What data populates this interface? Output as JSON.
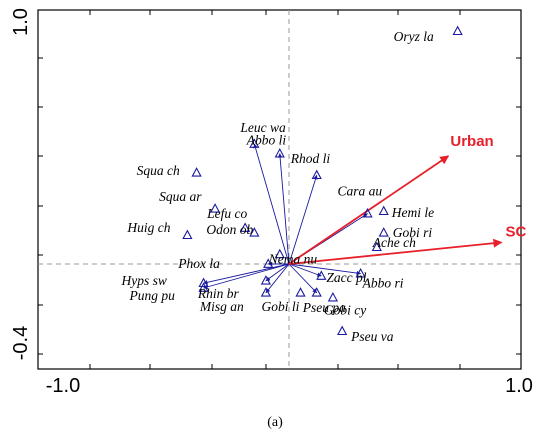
{
  "caption": "(a)",
  "chart_data": {
    "type": "biplot",
    "xlim": [
      -1.0,
      1.0
    ],
    "ylim": [
      -0.4,
      1.0
    ],
    "x_tick_labels": [
      "-1.0",
      "1.0"
    ],
    "y_tick_labels": [
      "1.0",
      "-0.4"
    ],
    "grid": false,
    "reference_lines": "dashed lines at x=0 and y=0",
    "colors": {
      "species": "#1a1a9e",
      "environment": "#e8202a",
      "axes": "#000000",
      "reference": "#999999"
    },
    "environmental_vectors": [
      {
        "label": "Urban",
        "x": 0.69,
        "y": 0.45
      },
      {
        "label": "SC",
        "x": 0.92,
        "y": 0.09
      }
    ],
    "species": [
      {
        "label": "Oryz la",
        "x": 0.73,
        "y": 0.97,
        "arrow": false
      },
      {
        "label": "Leuc wa",
        "x": -0.15,
        "y": 0.5,
        "arrow": true
      },
      {
        "label": "Abbo li",
        "x": -0.04,
        "y": 0.46,
        "arrow": true
      },
      {
        "label": "Rhod li",
        "x": 0.12,
        "y": 0.37,
        "arrow": true
      },
      {
        "label": "Squa ch",
        "x": -0.4,
        "y": 0.38,
        "arrow": false
      },
      {
        "label": "Squa ar",
        "x": -0.32,
        "y": 0.23,
        "arrow": false
      },
      {
        "label": "Cara au",
        "x": 0.34,
        "y": 0.21,
        "arrow": true
      },
      {
        "label": "Hemi le",
        "x": 0.41,
        "y": 0.22,
        "arrow": false
      },
      {
        "label": "Lefu co",
        "x": -0.19,
        "y": 0.15,
        "arrow": false
      },
      {
        "label": "Huig ch",
        "x": -0.44,
        "y": 0.12,
        "arrow": false
      },
      {
        "label": "Gobi ri",
        "x": 0.41,
        "y": 0.13,
        "arrow": false
      },
      {
        "label": "Odon ob",
        "x": -0.15,
        "y": 0.13,
        "arrow": false
      },
      {
        "label": "Nema nu",
        "x": -0.04,
        "y": 0.04,
        "arrow": false
      },
      {
        "label": "Ache ch",
        "x": 0.38,
        "y": 0.07,
        "arrow": false
      },
      {
        "label": "Phox la",
        "x": -0.09,
        "y": 0.0,
        "arrow": true
      },
      {
        "label": "Abbo ri",
        "x": 0.31,
        "y": -0.04,
        "arrow": true
      },
      {
        "label": "Hyps sw",
        "x": -0.37,
        "y": -0.08,
        "arrow": true
      },
      {
        "label": "Pung pu",
        "x": -0.37,
        "y": -0.1,
        "arrow": true
      },
      {
        "label": "Zacc pl",
        "x": 0.14,
        "y": -0.05,
        "arrow": true
      },
      {
        "label": "Rhin br",
        "x": -0.1,
        "y": -0.07,
        "arrow": true
      },
      {
        "label": "Gobi li",
        "x": 0.05,
        "y": -0.12,
        "arrow": false
      },
      {
        "label": "Gobi cy",
        "x": 0.19,
        "y": -0.14,
        "arrow": false
      },
      {
        "label": "Misg an",
        "x": -0.1,
        "y": -0.12,
        "arrow": true
      },
      {
        "label": "Pseu pa",
        "x": 0.12,
        "y": -0.12,
        "arrow": true
      },
      {
        "label": "Pseu va",
        "x": 0.23,
        "y": -0.28,
        "arrow": false
      }
    ]
  }
}
